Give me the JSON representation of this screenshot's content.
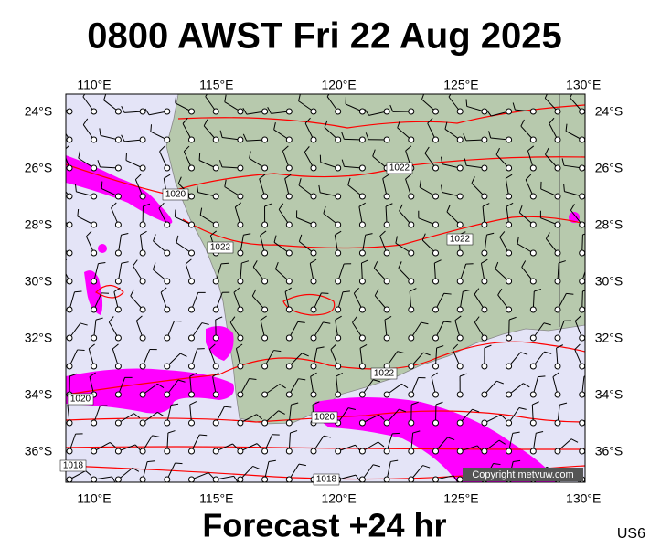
{
  "title": "0800 AWST Fri 22 Aug 2025",
  "longitude_labels": [
    "110°E",
    "115°E",
    "120°E",
    "125°E",
    "130°E"
  ],
  "latitude_labels": [
    "24°S",
    "26°S",
    "28°S",
    "30°S",
    "32°S",
    "34°S",
    "36°S"
  ],
  "isobar_labels": [
    "1020",
    "1022",
    "1022",
    "1022",
    "1022",
    "1020",
    "1020",
    "1018",
    "1018"
  ],
  "copyright": "Copyright metvuw.com",
  "footer": "Forecast +24 hr",
  "code": "US6"
}
